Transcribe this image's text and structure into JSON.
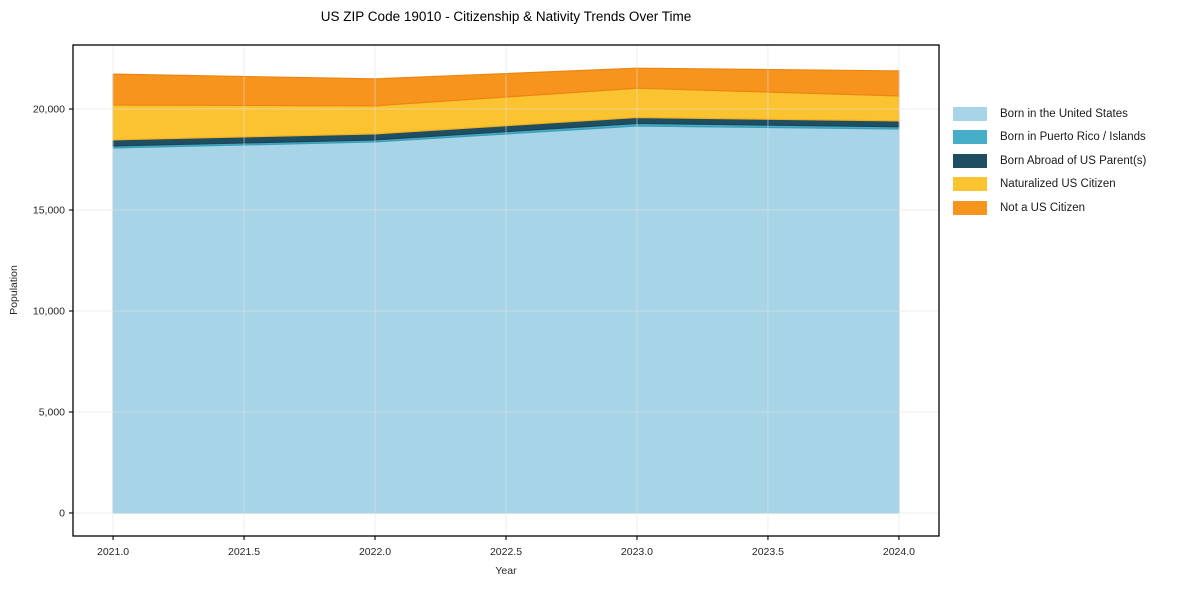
{
  "chart_data": {
    "type": "area",
    "stacked": true,
    "title": "US ZIP Code 19010 - Citizenship & Nativity Trends Over Time",
    "xlabel": "Year",
    "ylabel": "Population",
    "x": [
      2021,
      2022,
      2023,
      2024
    ],
    "series": [
      {
        "name": "Born in the United States",
        "color": "#a8d4e8",
        "edge": "#92c5dc",
        "values": [
          18070,
          18370,
          19160,
          19010
        ]
      },
      {
        "name": "Born in Puerto Rico / Islands",
        "color": "#45adc8",
        "edge": "#3d9db6",
        "values": [
          100,
          100,
          130,
          110
        ]
      },
      {
        "name": "Born Abroad of US Parent(s)",
        "color": "#1f4e62",
        "edge": "#1b4456",
        "values": [
          300,
          300,
          290,
          290
        ]
      },
      {
        "name": "Naturalized US Citizen",
        "color": "#fcc330",
        "edge": "#efb122",
        "values": [
          1730,
          1390,
          1450,
          1240
        ]
      },
      {
        "name": "Not a US Citizen",
        "color": "#f7941e",
        "edge": "#ea8613",
        "values": [
          1530,
          1330,
          990,
          1240
        ]
      }
    ],
    "xticks": {
      "values": [
        2021.0,
        2021.5,
        2022.0,
        2022.5,
        2023.0,
        2023.5,
        2024.0
      ],
      "labels": [
        "2021.0",
        "2021.5",
        "2022.0",
        "2022.5",
        "2023.0",
        "2023.5",
        "2024.0"
      ]
    },
    "yticks": {
      "values": [
        0,
        5000,
        10000,
        15000,
        20000
      ],
      "labels": [
        "0",
        "5,000",
        "10,000",
        "15,000",
        "20,000"
      ]
    },
    "xlim": [
      2020.847,
      2024.153
    ],
    "ylim": [
      -1140,
      23170
    ],
    "grid": true,
    "legend_position": "right"
  },
  "colors": {
    "background": "#ffffff",
    "grid": "#e0e0e0",
    "spine": "#000000",
    "tick_text": "#262626",
    "title_text": "#000000"
  }
}
